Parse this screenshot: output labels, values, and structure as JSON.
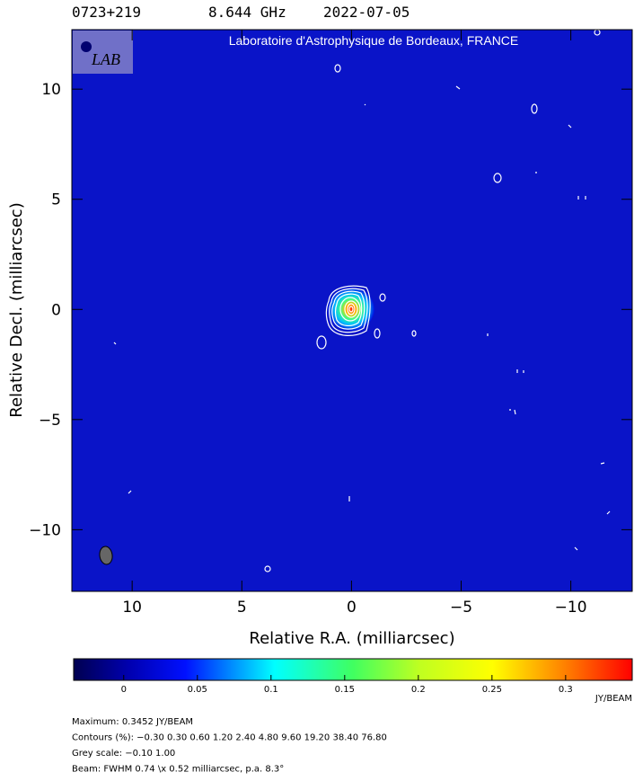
{
  "chart_data": {
    "type": "image",
    "header": {
      "source": "0723+219",
      "frequency": "8.644 GHz",
      "date": "2022-07-05"
    },
    "banner": "Laboratoire d'Astrophysique de Bordeaux, FRANCE",
    "x_label": "Relative R.A. (milliarcsec)",
    "y_label": "Relative Decl. (milliarcsec)",
    "xlim": [
      12.75,
      -12.8
    ],
    "ylim": [
      -12.8,
      12.7
    ],
    "xticks": [
      10,
      5,
      0,
      {
        "value": -5,
        "label": "−5"
      },
      {
        "value": -10,
        "label": "−10"
      }
    ],
    "yticks": [
      {
        "value": -10,
        "label": "−10"
      },
      {
        "value": -5,
        "label": "−5"
      },
      0,
      5,
      10
    ],
    "colorbar": {
      "lim": [
        -0.034,
        0.3452
      ],
      "ticks": [
        0,
        0.05,
        0.1,
        0.15,
        0.2,
        0.25,
        0.3
      ],
      "label": "JY/BEAM"
    },
    "footer": [
      "Maximum: 0.3452 JY/BEAM",
      "Contours (%): −0.30 0.30 0.60 1.20 2.40 4.80 9.60 19.20 38.40 76.80",
      "Grey scale: −0.10 1.00",
      "Beam: FWHM 0.74 \\x 0.52 milliarcsec, p.a. 8.3°"
    ]
  }
}
